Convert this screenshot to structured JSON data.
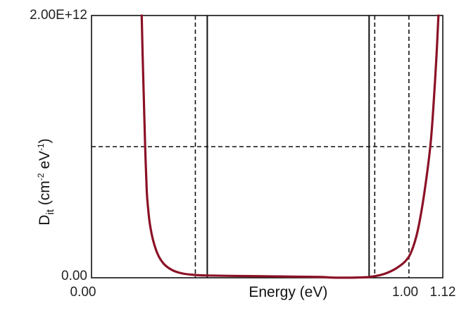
{
  "chart_data": {
    "type": "line",
    "xlabel": "Energy  (eV)",
    "ylabel": {
      "base": "D",
      "subscript": "it",
      "unit_open": " (cm",
      "unit_exp1": "-2",
      "unit_mid": "  eV",
      "unit_exp2": "-1",
      "unit_close": ")"
    },
    "xlim": [
      0,
      1.12
    ],
    "ylim": [
      0,
      2000000000000.0
    ],
    "x_ticks": [
      {
        "value": 0,
        "label": "0.00"
      },
      {
        "value": 1.0,
        "label": "1.00"
      },
      {
        "value": 1.12,
        "label": "1.12"
      }
    ],
    "y_ticks": [
      {
        "value": 0,
        "label": "0.00"
      },
      {
        "value": 2000000000000.0,
        "label": "2.00E+12"
      }
    ],
    "line_color": "#8b1226",
    "vertical_lines": [
      {
        "x": 0.331,
        "style": "dashed"
      },
      {
        "x": 0.369,
        "style": "solid"
      },
      {
        "x": 0.885,
        "style": "solid"
      },
      {
        "x": 0.903,
        "style": "dashed"
      },
      {
        "x": 1.012,
        "style": "dashed"
      }
    ],
    "horizontal_lines": [
      {
        "y": 1000000000000.0,
        "style": "dashed"
      }
    ],
    "series": [
      {
        "points": [
          [
            0.16,
            2000000000000.0
          ],
          [
            0.163,
            1700000000000.0
          ],
          [
            0.167,
            1350000000000.0
          ],
          [
            0.171,
            1000000000000.0
          ],
          [
            0.176,
            670000000000.0
          ],
          [
            0.18,
            540000000000.0
          ],
          [
            0.186,
            410000000000.0
          ],
          [
            0.196,
            290000000000.0
          ],
          [
            0.211,
            180000000000.0
          ],
          [
            0.231,
            105000000000.0
          ],
          [
            0.256,
            60000000000.0
          ],
          [
            0.286,
            35000000000.0
          ],
          [
            0.326,
            22000000000.0
          ],
          [
            0.37,
            17000000000.0
          ],
          [
            0.5,
            13000000000.0
          ],
          [
            0.6,
            10000000000.0
          ],
          [
            0.73,
            6000000000.0
          ],
          [
            0.76,
            2000000000.0
          ],
          [
            0.8,
            300000000.0
          ],
          [
            0.85,
            2000000000.0
          ],
          [
            0.88,
            5000000000.0
          ],
          [
            0.91,
            15000000000.0
          ],
          [
            0.94,
            35000000000.0
          ],
          [
            0.97,
            70000000000.0
          ],
          [
            1.0,
            125000000000.0
          ],
          [
            1.02,
            200000000000.0
          ],
          [
            1.04,
            360000000000.0
          ],
          [
            1.06,
            630000000000.0
          ],
          [
            1.08,
            1000000000000.0
          ],
          [
            1.09,
            1300000000000.0
          ],
          [
            1.1,
            1700000000000.0
          ],
          [
            1.106,
            2000000000000.0
          ]
        ]
      }
    ]
  }
}
